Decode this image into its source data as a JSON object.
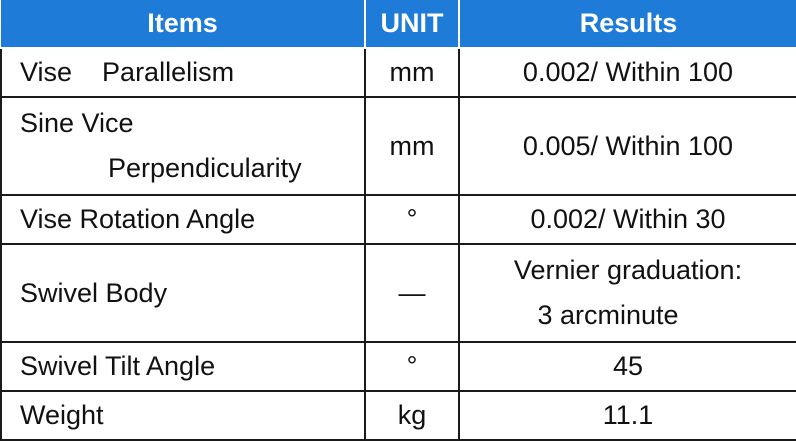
{
  "table": {
    "header": [
      "Items",
      "UNIT",
      "Results"
    ],
    "rows": [
      [
        [
          "Vise    Parallelism"
        ],
        [
          "mm"
        ],
        [
          "0.002/ Within 100"
        ]
      ],
      [
        [
          "Sine Vice",
          "Perpendicularity"
        ],
        [
          "mm"
        ],
        [
          "0.005/ Within 100"
        ]
      ],
      [
        [
          "Vise Rotation Angle"
        ],
        [
          "°"
        ],
        [
          "0.002/ Within 30"
        ]
      ],
      [
        [
          "Swivel Body"
        ],
        [
          "—"
        ],
        [
          "Vernier graduation:",
          "3 arcminute"
        ]
      ],
      [
        [
          "Swivel Tilt Angle"
        ],
        [
          "°"
        ],
        [
          "45"
        ]
      ],
      [
        [
          "Weight"
        ],
        [
          "kg"
        ],
        [
          "11.1"
        ]
      ]
    ]
  }
}
